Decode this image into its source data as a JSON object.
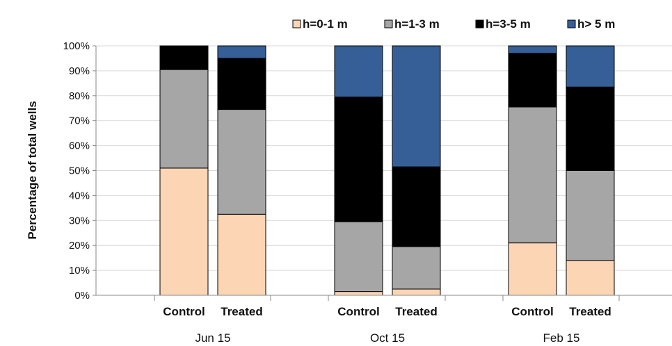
{
  "chart_data": {
    "type": "bar",
    "stacked": true,
    "percent": true,
    "ylabel": "Percentage of total wells",
    "ylim": [
      0,
      100
    ],
    "yticks": [
      "0%",
      "10%",
      "20%",
      "30%",
      "40%",
      "50%",
      "60%",
      "70%",
      "80%",
      "90%",
      "100%"
    ],
    "grid": true,
    "legend_position": "top-right",
    "groups": [
      "Jun 15",
      "Oct 15",
      "Feb 15"
    ],
    "categories": [
      "Control",
      "Treated",
      "Control",
      "Treated",
      "Control",
      "Treated"
    ],
    "series": [
      {
        "name": "h=0-1 m",
        "color": "#fcd5b5",
        "values": [
          51,
          32.5,
          1.5,
          2.5,
          21,
          14
        ]
      },
      {
        "name": "h=1-3 m",
        "color": "#a6a6a6",
        "values": [
          39.5,
          42,
          28,
          17,
          54.5,
          36
        ]
      },
      {
        "name": "h=3-5 m",
        "color": "#000000",
        "values": [
          9.5,
          20.5,
          50,
          32,
          21.5,
          33.5
        ]
      },
      {
        "name": "h> 5 m",
        "color": "#355f96",
        "values": [
          0,
          5,
          20.5,
          48.5,
          3,
          16.5
        ]
      }
    ]
  }
}
